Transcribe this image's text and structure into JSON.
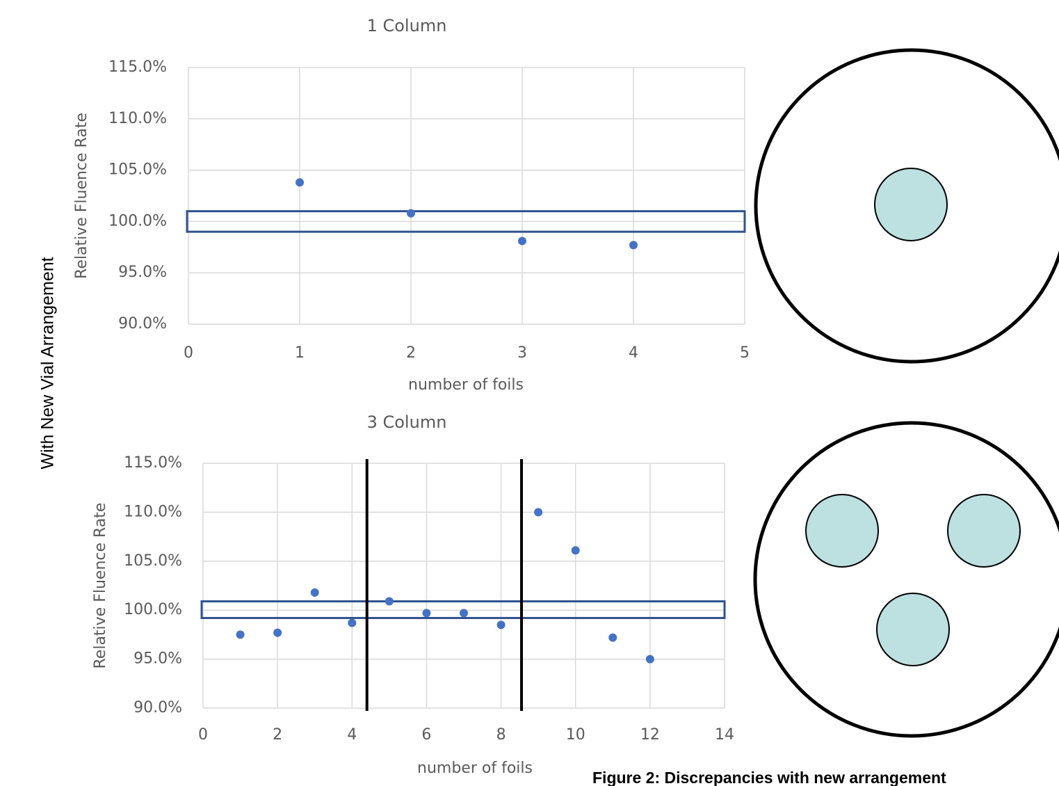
{
  "side_label": "With New Vial Arrangement",
  "caption": "Figure 2: Discrepancies with new arrangement",
  "chart_data": [
    {
      "type": "scatter",
      "title": "1 Column",
      "x_label": "number of foils",
      "y_label": "Relative Fluence Rate",
      "x": [
        1,
        2,
        3,
        4
      ],
      "values": [
        103.8,
        100.8,
        98.1,
        97.7
      ],
      "color": "#4472c4",
      "xlim": [
        0,
        5
      ],
      "xticks": [
        0,
        1,
        2,
        3,
        4,
        5
      ],
      "ylim": [
        90,
        115
      ],
      "yticks": [
        {
          "value": 90,
          "label": "90.0%"
        },
        {
          "value": 95,
          "label": "95.0%"
        },
        {
          "value": 100,
          "label": "100.0%"
        },
        {
          "value": 105,
          "label": "105.0%"
        },
        {
          "value": 110,
          "label": "110.0%"
        },
        {
          "value": 115,
          "label": "115.0%"
        }
      ],
      "grid": true,
      "band": [
        99,
        101
      ],
      "band_color": "#2f528f"
    },
    {
      "type": "scatter",
      "title": "3 Column",
      "x_label": "number of foils",
      "y_label": "Relative Fluence Rate",
      "x": [
        1,
        2,
        3,
        4,
        5,
        6,
        7,
        8,
        9,
        10,
        11,
        12
      ],
      "values": [
        97.5,
        97.7,
        101.8,
        98.7,
        100.9,
        99.7,
        99.7,
        98.5,
        110.0,
        106.1,
        97.2,
        95.0
      ],
      "color": "#4472c4",
      "xlim": [
        0,
        14
      ],
      "xticks": [
        0,
        2,
        4,
        6,
        8,
        10,
        12,
        14
      ],
      "ylim": [
        90,
        115
      ],
      "yticks": [
        {
          "value": 90,
          "label": "90.0%"
        },
        {
          "value": 95,
          "label": "95.0%"
        },
        {
          "value": 100,
          "label": "100.0%"
        },
        {
          "value": 105,
          "label": "105.0%"
        },
        {
          "value": 110,
          "label": "110.0%"
        },
        {
          "value": 115,
          "label": "115.0%"
        }
      ],
      "grid": true,
      "band": [
        99.2,
        100.9
      ],
      "band_color": "#2f528f",
      "vlines": [
        4.4,
        8.55
      ]
    }
  ]
}
